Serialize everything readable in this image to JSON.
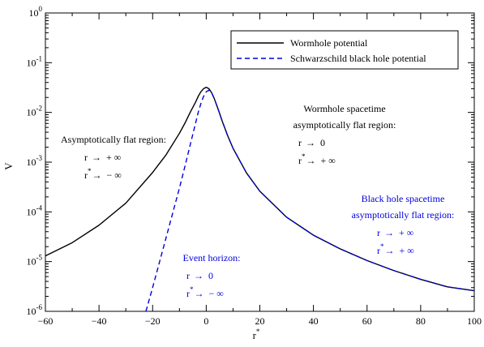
{
  "chart_data": {
    "type": "line",
    "title": "",
    "xlabel": "r",
    "xlabel_superscript": "*",
    "ylabel": "V",
    "xlim": [
      -60,
      100
    ],
    "ylim": [
      1e-06,
      1
    ],
    "yscale": "log",
    "grid": false,
    "legend": "top-right",
    "xticks": [
      -60,
      -40,
      -20,
      0,
      20,
      40,
      60,
      80,
      100
    ],
    "yticks": [
      {
        "value": 1,
        "base": "10",
        "exp": "0"
      },
      {
        "value": 0.1,
        "base": "10",
        "exp": "-1"
      },
      {
        "value": 0.01,
        "base": "10",
        "exp": "-2"
      },
      {
        "value": 0.001,
        "base": "10",
        "exp": "-3"
      },
      {
        "value": 0.0001,
        "base": "10",
        "exp": "-4"
      },
      {
        "value": 1e-05,
        "base": "10",
        "exp": "-5"
      },
      {
        "value": 1e-06,
        "base": "10",
        "exp": "-6"
      }
    ],
    "series": [
      {
        "name": "Wormhole potential",
        "color": "#000000",
        "style": "solid",
        "x": [
          -60,
          -50,
          -40,
          -30,
          -20,
          -15,
          -10,
          -8,
          -6,
          -4,
          -3,
          -2,
          -1,
          0,
          1,
          2,
          3,
          4,
          5,
          6,
          8,
          10,
          15,
          20,
          30,
          40,
          50,
          60,
          70,
          80,
          90,
          100
        ],
        "y": [
          1.3e-05,
          2.4e-05,
          5.4e-05,
          0.00015,
          0.00062,
          0.0014,
          0.0038,
          0.006,
          0.01,
          0.016,
          0.021,
          0.026,
          0.03,
          0.032,
          0.03,
          0.025,
          0.019,
          0.0135,
          0.0095,
          0.0066,
          0.0034,
          0.0019,
          0.00061,
          0.00026,
          7.8e-05,
          3.4e-05,
          1.8e-05,
          1.05e-05,
          6.6e-06,
          4.4e-06,
          3.1e-06,
          2.6e-06
        ]
      },
      {
        "name": "Schwarzschild black hole potential",
        "color": "#0000dd",
        "style": "dashed",
        "x": [
          -22.5,
          -20,
          -15,
          -10,
          -8,
          -6,
          -4,
          -3,
          -2,
          -1,
          0,
          1,
          2,
          3,
          4,
          5,
          6,
          8,
          10,
          15,
          20,
          30,
          40,
          50,
          60,
          70,
          80,
          90,
          100
        ],
        "y": [
          1e-06,
          3e-06,
          3e-05,
          0.0003,
          0.0008,
          0.0022,
          0.006,
          0.01,
          0.015,
          0.021,
          0.026,
          0.028,
          0.025,
          0.019,
          0.0135,
          0.0095,
          0.0066,
          0.0034,
          0.0019,
          0.00061,
          0.00026,
          7.8e-05,
          3.4e-05,
          1.8e-05,
          1.05e-05,
          6.6e-06,
          4.4e-06,
          3.1e-06,
          2.6e-06
        ]
      }
    ],
    "annotations": [
      {
        "id": "left-region",
        "color": "#000000",
        "lines": [
          "Asymptotically flat region:"
        ],
        "math": [
          {
            "lhs": "r",
            "sup": "",
            "arrow": "→",
            "rhs": "+ ∞"
          },
          {
            "lhs": "r",
            "sup": "*",
            "arrow": "→",
            "rhs": "− ∞"
          }
        ]
      },
      {
        "id": "wormhole-region",
        "color": "#000000",
        "lines": [
          "Wormhole spacetime",
          "asymptotically flat region:"
        ],
        "math": [
          {
            "lhs": "r",
            "sup": "",
            "arrow": "→",
            "rhs": "0"
          },
          {
            "lhs": "r",
            "sup": "*",
            "arrow": "→",
            "rhs": "+ ∞"
          }
        ]
      },
      {
        "id": "blackhole-region",
        "color": "#0000dd",
        "lines": [
          "Black hole spacetime",
          "asymptotically flat region:"
        ],
        "math": [
          {
            "lhs": "r",
            "sup": "",
            "arrow": "→",
            "rhs": "+ ∞"
          },
          {
            "lhs": "r",
            "sup": "*",
            "arrow": "→",
            "rhs": "+ ∞"
          }
        ]
      },
      {
        "id": "event-horizon",
        "color": "#0000dd",
        "lines": [
          "Event horizon:"
        ],
        "math": [
          {
            "lhs": "r",
            "sup": "",
            "arrow": "→",
            "rhs": "0"
          },
          {
            "lhs": "r",
            "sup": "*",
            "arrow": "→",
            "rhs": "− ∞"
          }
        ]
      }
    ]
  }
}
